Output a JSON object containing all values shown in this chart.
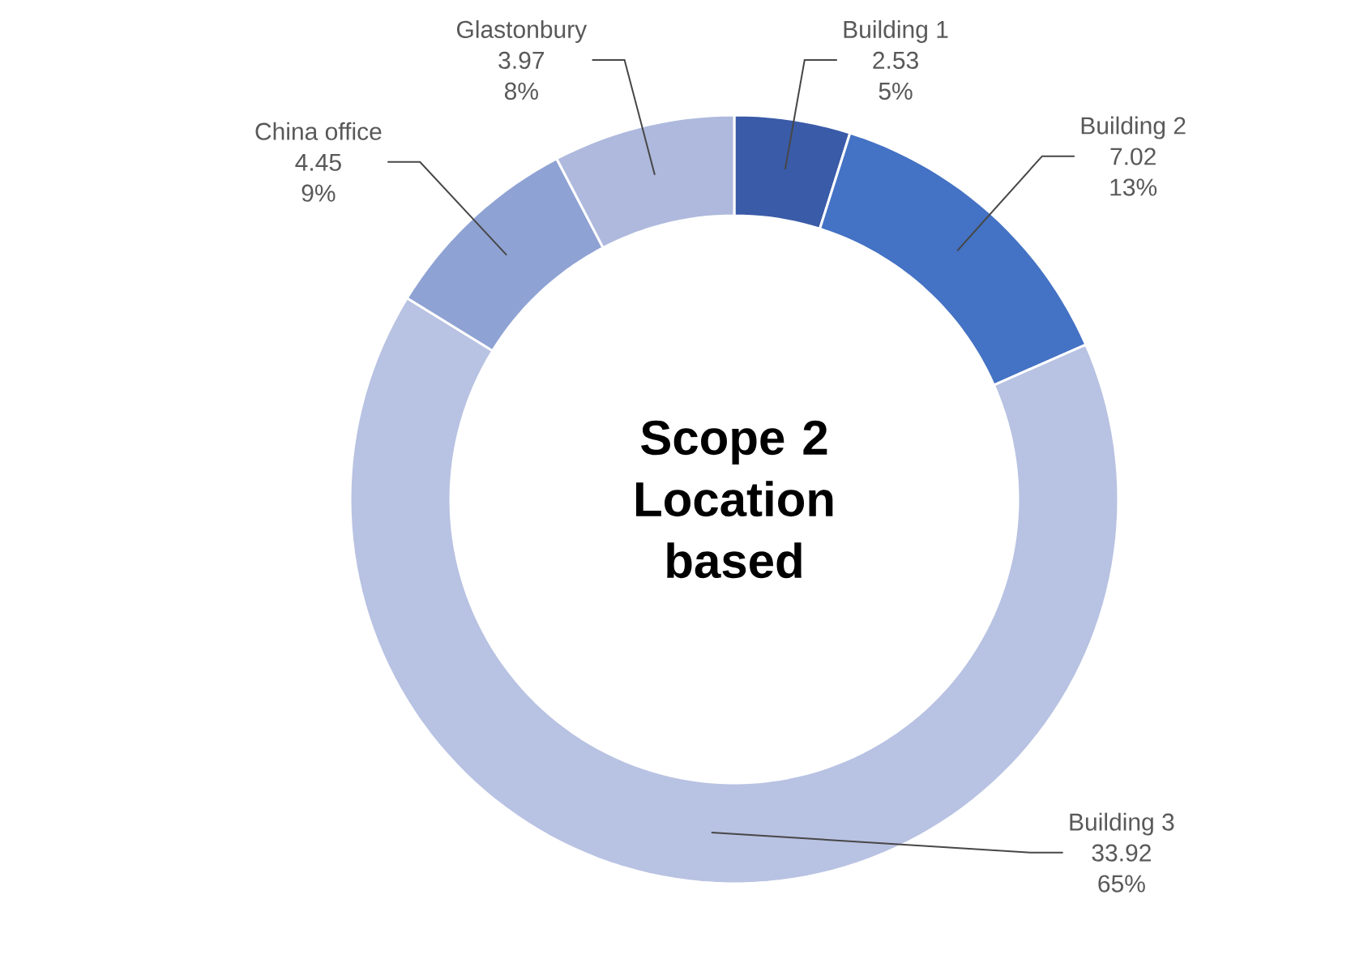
{
  "chart_data": {
    "type": "donut",
    "title": "Scope 2 Location based",
    "categories": [
      "Building 1",
      "Building 2",
      "Building 3",
      "China office",
      "Glastonbury"
    ],
    "values": [
      2.53,
      7.02,
      33.92,
      4.45,
      3.97
    ],
    "annotations": [
      "5%",
      "13%",
      "65%",
      "9%",
      "8%"
    ],
    "colors": [
      "#3a5ba8",
      "#4472c4",
      "#b8c2e2",
      "#8fa2d4",
      "#aeb9dd"
    ],
    "data_labels": true
  }
}
